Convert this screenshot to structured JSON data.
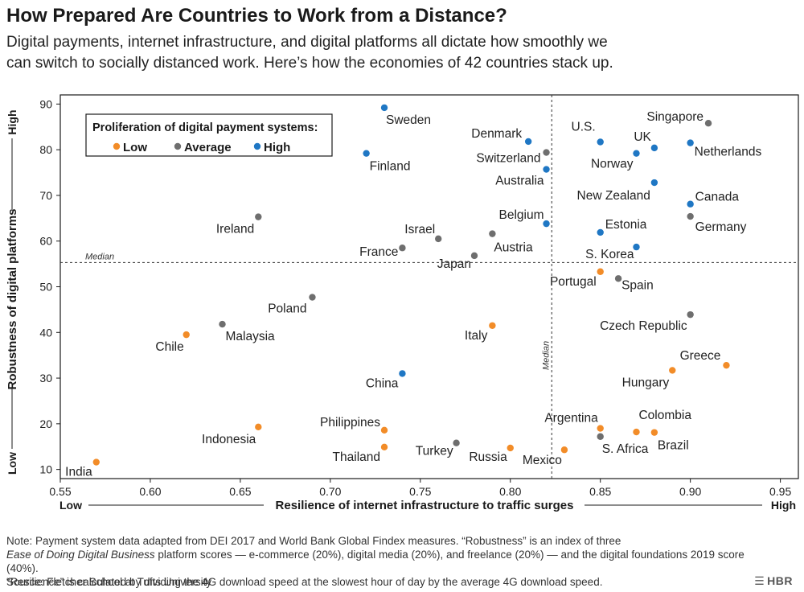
{
  "header": {
    "title": "How Prepared Are Countries to Work from a Distance?",
    "subtitle_line1": "Digital payments, internet infrastructure, and digital platforms all dictate how smoothly we",
    "subtitle_line2": "can switch to socially distanced work. Here’s how the economies of 42 countries stack up."
  },
  "footer": {
    "note_line1": "Note: Payment system data adapted from DEI 2017 and World Bank Global Findex measures. “Robustness” is an index of three",
    "note_line2_italic": "Ease of Doing Digital Business",
    "note_line2_rest": " platform scores — e-commerce (20%), digital media (20%), and freelance (20%) — and the digital foundations 2019 score (40%).",
    "note_line3": "“Resilience” is calculated by dividing the 4G download speed at the slowest hour of day by the average 4G download speed.",
    "source": "Source: Fletcher School at Tufts University",
    "brand": "HBR"
  },
  "chart_data": {
    "type": "scatter",
    "xlabel": "Resilience of internet infrastructure to traffic surges",
    "ylabel": "Robustness of digital platforms",
    "x_low_label": "Low",
    "x_high_label": "High",
    "y_low_label": "Low",
    "y_high_label": "High",
    "xlim": [
      0.55,
      0.96
    ],
    "ylim": [
      8,
      92
    ],
    "xticks": [
      0.55,
      0.6,
      0.65,
      0.7,
      0.75,
      0.8,
      0.85,
      0.9,
      0.95
    ],
    "xtick_labels": [
      "0.55",
      "0.60",
      "0.65",
      "0.70",
      "0.75",
      "0.80",
      "0.85",
      "0.90",
      "0.95"
    ],
    "yticks": [
      10,
      20,
      30,
      40,
      50,
      60,
      70,
      80,
      90
    ],
    "grid": false,
    "median_x": 0.823,
    "median_y": 55.3,
    "median_label": "Median",
    "legend": {
      "title": "Proliferation of digital payment systems:",
      "placement": "top-left",
      "items": [
        {
          "key": "low",
          "label": "Low"
        },
        {
          "key": "average",
          "label": "Average"
        },
        {
          "key": "high",
          "label": "High"
        }
      ]
    },
    "colors": {
      "low": "#F28C28",
      "average": "#6E6E6E",
      "high": "#1F77C4"
    },
    "points": [
      {
        "name": "Sweden",
        "x": 0.73,
        "y": 89.2,
        "group": "high"
      },
      {
        "name": "Finland",
        "x": 0.72,
        "y": 79.2,
        "group": "high"
      },
      {
        "name": "Denmark",
        "x": 0.81,
        "y": 81.8,
        "group": "high"
      },
      {
        "name": "Switzerland",
        "x": 0.82,
        "y": 79.4,
        "group": "average"
      },
      {
        "name": "Australia",
        "x": 0.82,
        "y": 75.7,
        "group": "high"
      },
      {
        "name": "U.S.",
        "x": 0.85,
        "y": 81.7,
        "group": "high"
      },
      {
        "name": "UK",
        "x": 0.88,
        "y": 80.4,
        "group": "high"
      },
      {
        "name": "Norway",
        "x": 0.87,
        "y": 79.2,
        "group": "high"
      },
      {
        "name": "Singapore",
        "x": 0.91,
        "y": 85.8,
        "group": "average"
      },
      {
        "name": "Netherlands",
        "x": 0.9,
        "y": 81.5,
        "group": "high"
      },
      {
        "name": "New Zealand",
        "x": 0.88,
        "y": 72.8,
        "group": "high"
      },
      {
        "name": "Canada",
        "x": 0.9,
        "y": 68.1,
        "group": "high"
      },
      {
        "name": "Germany",
        "x": 0.9,
        "y": 65.4,
        "group": "average"
      },
      {
        "name": "Ireland",
        "x": 0.66,
        "y": 65.3,
        "group": "average"
      },
      {
        "name": "Israel",
        "x": 0.76,
        "y": 60.5,
        "group": "average"
      },
      {
        "name": "France",
        "x": 0.74,
        "y": 58.5,
        "group": "average"
      },
      {
        "name": "Belgium",
        "x": 0.82,
        "y": 63.8,
        "group": "high"
      },
      {
        "name": "Austria",
        "x": 0.79,
        "y": 61.6,
        "group": "average"
      },
      {
        "name": "Japan",
        "x": 0.78,
        "y": 56.8,
        "group": "average"
      },
      {
        "name": "Estonia",
        "x": 0.85,
        "y": 61.9,
        "group": "high"
      },
      {
        "name": "S. Korea",
        "x": 0.87,
        "y": 58.7,
        "group": "high"
      },
      {
        "name": "Portugal",
        "x": 0.85,
        "y": 53.3,
        "group": "low"
      },
      {
        "name": "Spain",
        "x": 0.86,
        "y": 51.8,
        "group": "average"
      },
      {
        "name": "Poland",
        "x": 0.69,
        "y": 47.7,
        "group": "average"
      },
      {
        "name": "Malaysia",
        "x": 0.64,
        "y": 41.8,
        "group": "average"
      },
      {
        "name": "Chile",
        "x": 0.62,
        "y": 39.5,
        "group": "low"
      },
      {
        "name": "Italy",
        "x": 0.79,
        "y": 41.5,
        "group": "low"
      },
      {
        "name": "Czech Republic",
        "x": 0.9,
        "y": 43.9,
        "group": "average"
      },
      {
        "name": "Greece",
        "x": 0.92,
        "y": 32.8,
        "group": "low"
      },
      {
        "name": "Hungary",
        "x": 0.89,
        "y": 31.7,
        "group": "low"
      },
      {
        "name": "China",
        "x": 0.74,
        "y": 31.0,
        "group": "high"
      },
      {
        "name": "Philippines",
        "x": 0.73,
        "y": 18.6,
        "group": "low"
      },
      {
        "name": "Indonesia",
        "x": 0.66,
        "y": 19.3,
        "group": "low"
      },
      {
        "name": "Thailand",
        "x": 0.73,
        "y": 14.9,
        "group": "low"
      },
      {
        "name": "Turkey",
        "x": 0.77,
        "y": 15.8,
        "group": "average"
      },
      {
        "name": "Russia",
        "x": 0.8,
        "y": 14.7,
        "group": "low"
      },
      {
        "name": "Mexico",
        "x": 0.83,
        "y": 14.3,
        "group": "low"
      },
      {
        "name": "Argentina",
        "x": 0.85,
        "y": 19.0,
        "group": "low"
      },
      {
        "name": "S. Africa",
        "x": 0.85,
        "y": 17.2,
        "group": "average"
      },
      {
        "name": "Colombia",
        "x": 0.87,
        "y": 18.2,
        "group": "low"
      },
      {
        "name": "Brazil",
        "x": 0.88,
        "y": 18.1,
        "group": "low"
      },
      {
        "name": "India",
        "x": 0.57,
        "y": 11.6,
        "group": "low"
      }
    ]
  }
}
